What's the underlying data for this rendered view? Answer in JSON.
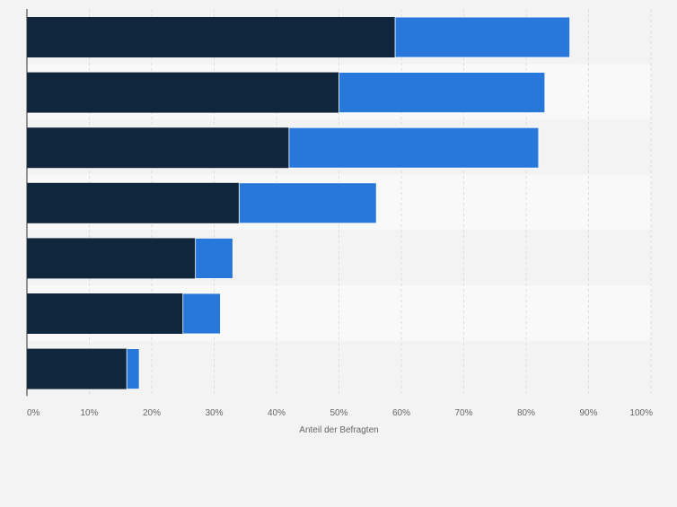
{
  "chart_data": {
    "type": "bar",
    "orientation": "horizontal",
    "stacked": true,
    "categories": [
      "",
      "",
      "",
      "",
      "",
      "",
      ""
    ],
    "series": [
      {
        "values": [
          59,
          50,
          42,
          34,
          27,
          25,
          16
        ],
        "color": "#10263d"
      },
      {
        "values": [
          28,
          33,
          40,
          22,
          6,
          6,
          2
        ],
        "color": "#2878dc"
      }
    ],
    "xlim": [
      0,
      100
    ],
    "xticks": [
      "0%",
      "10%",
      "20%",
      "30%",
      "40%",
      "50%",
      "60%",
      "70%",
      "80%",
      "90%",
      "100%"
    ],
    "xlabel": "Anteil der Befragten",
    "ylabel": "",
    "title": "",
    "grid": true,
    "row_band_colors": [
      "#f3f3f3",
      "#f9f9f9"
    ],
    "background": "#f3f3f3"
  }
}
